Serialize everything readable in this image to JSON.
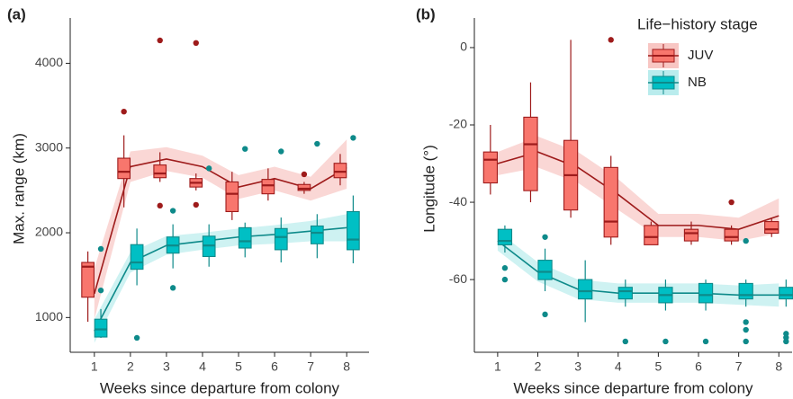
{
  "chart_data": [
    {
      "type": "box",
      "label": "(a)",
      "xlabel": "Weeks since departure from colony",
      "ylabel": "Max. range (km)",
      "x": [
        1,
        2,
        3,
        4,
        5,
        6,
        7,
        8
      ],
      "xlim": [
        0.33,
        8.62
      ],
      "ylim": [
        590,
        4450
      ],
      "xticks": [
        1,
        2,
        3,
        4,
        5,
        6,
        7,
        8
      ],
      "yticks": [
        1000,
        2000,
        3000,
        4000
      ],
      "series": [
        {
          "color": "#f8766d",
          "line_color": "#9e1b1b",
          "ribbon_color": "#f8c6c3",
          "whisker_low": [
            950,
            2300,
            2600,
            2500,
            2150,
            2380,
            2460,
            2560
          ],
          "q1": [
            1240,
            2640,
            2650,
            2540,
            2250,
            2460,
            2500,
            2650
          ],
          "median": [
            1600,
            2720,
            2700,
            2590,
            2460,
            2560,
            2520,
            2720
          ],
          "q3": [
            1650,
            2880,
            2800,
            2640,
            2600,
            2630,
            2570,
            2820
          ],
          "whisker_high": [
            1780,
            3150,
            2950,
            2700,
            2720,
            2760,
            2600,
            2930
          ],
          "outliers": [
            [],
            [
              3430
            ],
            [
              4270,
              2320
            ],
            [
              4240,
              2330
            ],
            [],
            [],
            [
              2690
            ],
            []
          ],
          "fit": [
            1280,
            2780,
            2870,
            2780,
            2540,
            2640,
            2520,
            2770
          ],
          "fit_lower": [
            980,
            2600,
            2730,
            2650,
            2400,
            2500,
            2380,
            2520
          ],
          "fit_upper": [
            1580,
            2960,
            3010,
            2910,
            2680,
            2780,
            2660,
            3100
          ]
        },
        {
          "color": "#00bfc4",
          "line_color": "#0e8a8a",
          "ribbon_color": "#b9eced",
          "whisker_low": [
            760,
            1380,
            1580,
            1600,
            1710,
            1650,
            1700,
            1640
          ],
          "q1": [
            770,
            1570,
            1760,
            1720,
            1820,
            1800,
            1870,
            1800
          ],
          "median": [
            860,
            1650,
            1850,
            1850,
            1900,
            1950,
            2000,
            1920
          ],
          "q3": [
            980,
            1860,
            1950,
            1960,
            2060,
            2050,
            2080,
            2250
          ],
          "whisker_high": [
            1100,
            2050,
            2100,
            2100,
            2120,
            2180,
            2220,
            2440
          ],
          "outliers": [
            [
              1810,
              1320
            ],
            [
              760
            ],
            [
              2260,
              1350
            ],
            [
              2760
            ],
            [
              2990
            ],
            [
              2960
            ],
            [
              3050
            ],
            [
              3120
            ]
          ],
          "fit": [
            840,
            1650,
            1850,
            1900,
            1950,
            1980,
            2020,
            2060
          ],
          "fit_lower": [
            700,
            1530,
            1740,
            1800,
            1850,
            1870,
            1900,
            1900
          ],
          "fit_upper": [
            980,
            1770,
            1960,
            2000,
            2050,
            2090,
            2140,
            2220
          ]
        }
      ]
    },
    {
      "type": "box",
      "label": "(b)",
      "xlabel": "Weeks since departure from colony",
      "ylabel": "Longitude (°)",
      "legend_title": "Life−history stage",
      "x": [
        1,
        2,
        3,
        4,
        5,
        6,
        7,
        8
      ],
      "xlim": [
        0.42,
        8.33
      ],
      "ylim": [
        -78.8,
        5.8
      ],
      "xticks": [
        1,
        2,
        3,
        4,
        5,
        6,
        7,
        8
      ],
      "yticks": [
        0,
        -20,
        -40,
        -60
      ],
      "series": [
        {
          "name": "JUV",
          "color": "#f8766d",
          "line_color": "#9e1b1b",
          "ribbon_color": "#f8c6c3",
          "whisker_low": [
            -38,
            -40,
            -44,
            -51,
            -51,
            -51,
            -51,
            -49
          ],
          "q1": [
            -35,
            -37,
            -42,
            -49,
            -51,
            -50,
            -50,
            -48
          ],
          "median": [
            -29,
            -25,
            -33,
            -45,
            -49,
            -48,
            -49,
            -47
          ],
          "q3": [
            -27,
            -18,
            -24,
            -31,
            -46,
            -47,
            -47,
            -45
          ],
          "whisker_high": [
            -20,
            -9,
            2,
            -28,
            -45,
            -45,
            -46,
            -44
          ],
          "outliers": [
            [],
            [],
            [],
            [
              2
            ],
            [],
            [],
            [
              -40
            ],
            []
          ],
          "fit": [
            -30,
            -27,
            -31,
            -38,
            -46,
            -46,
            -47,
            -43.5
          ],
          "fit_lower": [
            -33,
            -31,
            -35,
            -42,
            -49,
            -49,
            -50,
            -48
          ],
          "fit_upper": [
            -27,
            -23,
            -27,
            -34,
            -43,
            -43,
            -44,
            -39
          ]
        },
        {
          "name": "NB",
          "color": "#00bfc4",
          "line_color": "#0e8a8a",
          "ribbon_color": "#b9eced",
          "whisker_low": [
            -53,
            -63,
            -71,
            -67,
            -68,
            -68,
            -67,
            -67
          ],
          "q1": [
            -51,
            -60,
            -65,
            -65,
            -66,
            -66,
            -65,
            -65
          ],
          "median": [
            -50,
            -58,
            -63,
            -63,
            -64,
            -64,
            -64,
            -64
          ],
          "q3": [
            -47,
            -55,
            -60,
            -62,
            -62,
            -61,
            -61,
            -62
          ],
          "whisker_high": [
            -46,
            -52,
            -55,
            -60,
            -60,
            -60,
            -60,
            -60
          ],
          "outliers": [
            [
              -57,
              -60
            ],
            [
              -49,
              -69
            ],
            [],
            [
              -76
            ],
            [
              -76
            ],
            [
              -76
            ],
            [
              -71,
              -73,
              -76,
              -50
            ],
            [
              -74,
              -75,
              -76
            ]
          ],
          "fit": [
            -50,
            -58,
            -62.5,
            -63.5,
            -63.5,
            -63.5,
            -64,
            -64
          ],
          "fit_lower": [
            -52.5,
            -60.5,
            -65,
            -66,
            -66,
            -66,
            -66.5,
            -67
          ],
          "fit_upper": [
            -47.5,
            -55.5,
            -60,
            -61,
            -61,
            -61,
            -61.5,
            -61
          ]
        }
      ]
    }
  ]
}
